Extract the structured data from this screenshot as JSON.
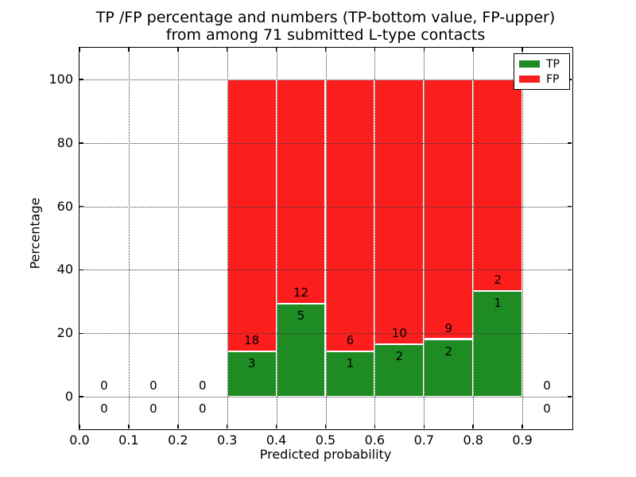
{
  "chart_data": {
    "type": "bar",
    "stacked": true,
    "title_line1": "TP /FP percentage and numbers (TP-bottom value, FP-upper)",
    "title_line2": "from among 71 submitted L-type contacts",
    "xlabel": "Predicted probability",
    "ylabel": "Percentage",
    "xlim": [
      0.0,
      1.0
    ],
    "ylim": [
      -10,
      110
    ],
    "xticks": [
      "0.0",
      "0.1",
      "0.2",
      "0.3",
      "0.4",
      "0.5",
      "0.6",
      "0.7",
      "0.8",
      "0.9"
    ],
    "yticks": [
      0,
      20,
      40,
      60,
      80,
      100
    ],
    "grid": true,
    "grid_style": "dotted",
    "total_contacts": 71,
    "bin_width": 0.1,
    "bins": [
      {
        "range": [
          0.0,
          0.1
        ],
        "tp": 0,
        "fp": 0,
        "tp_pct": 0
      },
      {
        "range": [
          0.1,
          0.2
        ],
        "tp": 0,
        "fp": 0,
        "tp_pct": 0
      },
      {
        "range": [
          0.2,
          0.3
        ],
        "tp": 0,
        "fp": 0,
        "tp_pct": 0
      },
      {
        "range": [
          0.3,
          0.4
        ],
        "tp": 3,
        "fp": 18,
        "tp_pct": 14.29
      },
      {
        "range": [
          0.4,
          0.5
        ],
        "tp": 5,
        "fp": 12,
        "tp_pct": 29.41
      },
      {
        "range": [
          0.5,
          0.6
        ],
        "tp": 1,
        "fp": 6,
        "tp_pct": 14.29
      },
      {
        "range": [
          0.6,
          0.7
        ],
        "tp": 2,
        "fp": 10,
        "tp_pct": 16.67
      },
      {
        "range": [
          0.7,
          0.8
        ],
        "tp": 2,
        "fp": 9,
        "tp_pct": 18.18
      },
      {
        "range": [
          0.8,
          0.9
        ],
        "tp": 1,
        "fp": 2,
        "tp_pct": 33.33
      },
      {
        "range": [
          0.9,
          1.0
        ],
        "tp": 0,
        "fp": 0,
        "tp_pct": 0
      }
    ],
    "colors": {
      "tp": "#1e8c23",
      "fp": "#fc1d1d",
      "grid": "#3a3a3a",
      "spine": "#000000"
    },
    "legend": {
      "position": "upper right",
      "items": [
        {
          "label": "TP",
          "color": "#1e8c23"
        },
        {
          "label": "FP",
          "color": "#fc1d1d"
        }
      ]
    }
  }
}
